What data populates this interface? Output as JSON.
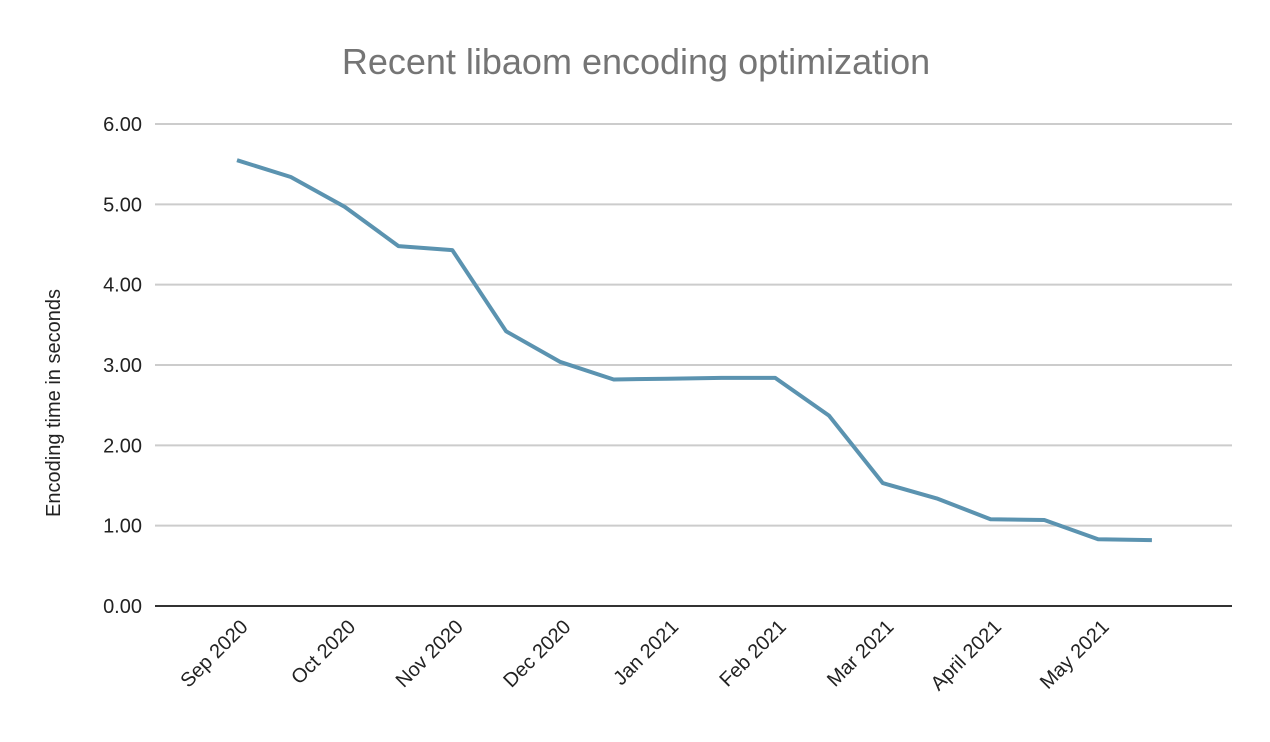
{
  "chart_data": {
    "type": "line",
    "title": "Recent libaom encoding optimization",
    "xlabel": "",
    "ylabel": "Encoding time in seconds",
    "ylim": [
      0,
      6
    ],
    "yticks": [
      "0.00",
      "1.00",
      "2.00",
      "3.00",
      "4.00",
      "5.00",
      "6.00"
    ],
    "grid": true,
    "categories": [
      "Sep 2020",
      "",
      "Oct 2020",
      "",
      "Nov 2020",
      "",
      "Dec 2020",
      "",
      "Jan 2021",
      "",
      "Feb 2021",
      "",
      "Mar 2021",
      "",
      "April 2021",
      "",
      "May 2021",
      ""
    ],
    "series": [
      {
        "values": [
          5.55,
          5.34,
          4.97,
          4.48,
          4.43,
          3.42,
          3.04,
          2.82,
          2.83,
          2.84,
          2.84,
          2.37,
          1.53,
          1.34,
          1.08,
          1.07,
          0.83,
          0.82
        ]
      }
    ],
    "colors": {
      "line": "#5b93b0",
      "title": "#757575"
    }
  }
}
